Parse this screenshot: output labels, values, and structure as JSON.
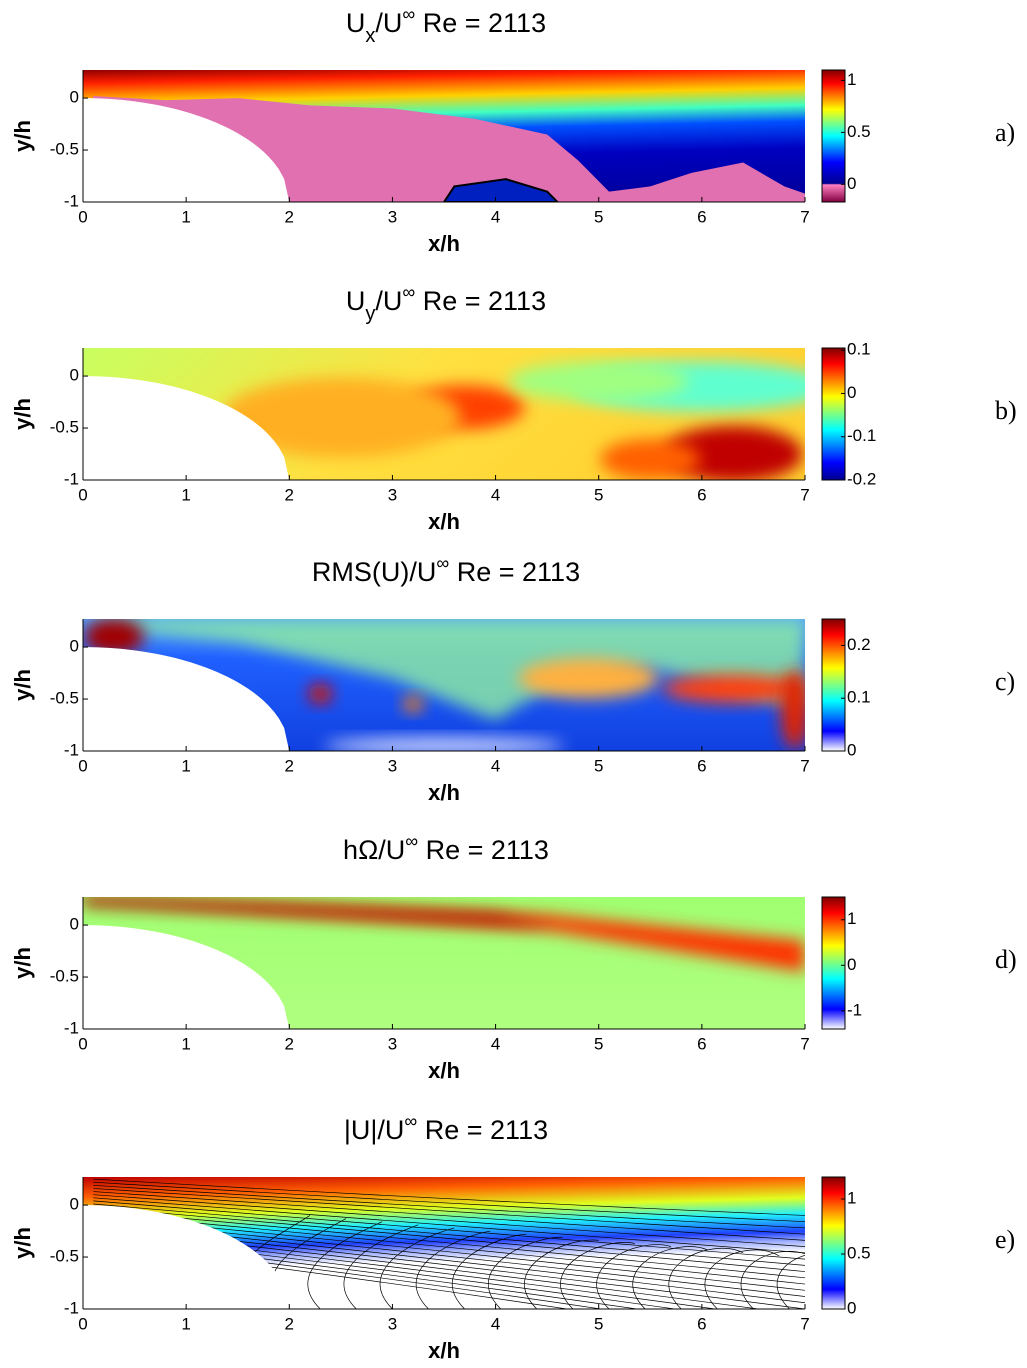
{
  "chart_data": [
    {
      "type": "heatmap",
      "title": [
        "U",
        {
          "sub": "x"
        },
        "/U",
        {
          "sup": "∞"
        },
        " Re = 2113"
      ],
      "xlabel": "x/h",
      "ylabel": "y/h",
      "xlim": [
        0,
        7
      ],
      "ylim": [
        -1,
        0.27
      ],
      "xticks": [
        0,
        1,
        2,
        3,
        4,
        5,
        6,
        7
      ],
      "yticks": [
        -1,
        -0.5,
        0
      ],
      "clim": [
        -0.17,
        1.1
      ],
      "cticks": [
        0,
        0.5,
        1
      ],
      "panel_label": "a)"
    },
    {
      "type": "heatmap",
      "title": [
        "U",
        {
          "sub": "y"
        },
        "/U",
        {
          "sup": "∞"
        },
        " Re = 2113"
      ],
      "xlabel": "x/h",
      "ylabel": "y/h",
      "xlim": [
        0,
        7
      ],
      "ylim": [
        -1,
        0.27
      ],
      "xticks": [
        0,
        1,
        2,
        3,
        4,
        5,
        6,
        7
      ],
      "yticks": [
        -1,
        -0.5,
        0
      ],
      "clim": [
        -0.2,
        0.105
      ],
      "cticks": [
        -0.2,
        -0.1,
        0,
        0.1
      ],
      "panel_label": "b)"
    },
    {
      "type": "heatmap",
      "title": [
        "RMS(U)/U",
        {
          "sup": "∞"
        },
        " Re = 2113"
      ],
      "xlabel": "x/h",
      "ylabel": "y/h",
      "xlim": [
        0,
        7
      ],
      "ylim": [
        -1,
        0.27
      ],
      "xticks": [
        0,
        1,
        2,
        3,
        4,
        5,
        6,
        7
      ],
      "yticks": [
        -1,
        -0.5,
        0
      ],
      "clim": [
        0,
        0.25
      ],
      "cticks": [
        0,
        0.1,
        0.2
      ],
      "panel_label": "c)"
    },
    {
      "type": "heatmap",
      "title": [
        "hΩ/U",
        {
          "sup": "∞"
        },
        " Re = 2113"
      ],
      "xlabel": "x/h",
      "ylabel": "y/h",
      "xlim": [
        0,
        7
      ],
      "ylim": [
        -1,
        0.27
      ],
      "xticks": [
        0,
        1,
        2,
        3,
        4,
        5,
        6,
        7
      ],
      "yticks": [
        -1,
        -0.5,
        0
      ],
      "clim": [
        -1.4,
        1.5
      ],
      "cticks": [
        -1,
        0,
        1
      ],
      "panel_label": "d)"
    },
    {
      "type": "heatmap",
      "title": [
        "|U|/U",
        {
          "sup": "∞"
        },
        " Re = 2113"
      ],
      "xlabel": "x/h",
      "ylabel": "y/h",
      "xlim": [
        0,
        7
      ],
      "ylim": [
        -1,
        0.27
      ],
      "xticks": [
        0,
        1,
        2,
        3,
        4,
        5,
        6,
        7
      ],
      "yticks": [
        -1,
        -0.5,
        0
      ],
      "clim": [
        0,
        1.2
      ],
      "cticks": [
        0,
        0.5,
        1
      ],
      "panel_label": "e)"
    }
  ]
}
